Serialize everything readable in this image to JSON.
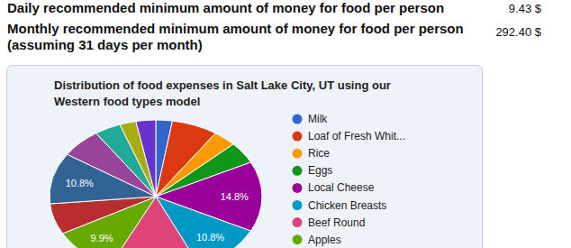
{
  "header": {
    "rows": [
      {
        "label": [
          "Daily recommended minimum amount of money for food per person"
        ],
        "value": "9.43 $"
      },
      {
        "label": [
          "Monthly recommended minimum amount of money for food per person",
          "(assuming 31 days per month)"
        ],
        "value": "292.40 $"
      }
    ]
  },
  "chart_data": {
    "type": "pie",
    "title": "Distribution of food expenses in Salt Lake City, UT using our Western food types model",
    "categories": [
      "Milk",
      "Loaf of Fresh Whit...",
      "Rice",
      "Eggs",
      "Local Cheese",
      "Chicken Breasts",
      "Beef Round",
      "Apples",
      null,
      null,
      null,
      null,
      null,
      null
    ],
    "values": [
      2.5,
      7,
      3.5,
      4.6,
      14.8,
      10.8,
      13.9,
      9.9,
      6.5,
      10.8,
      6.2,
      4,
      2.5,
      3
    ],
    "value_labels": [
      null,
      null,
      null,
      null,
      "14.8%",
      "10.8%",
      null,
      "9.9%",
      null,
      "10.8%",
      null,
      null,
      null,
      null
    ],
    "colors": [
      "#3366cc",
      "#dc3912",
      "#ff9900",
      "#109618",
      "#990099",
      "#0099c6",
      "#dd4477",
      "#66aa00",
      "#b82e2e",
      "#316395",
      "#994499",
      "#22aa99",
      "#aaaa11",
      "#6633cc"
    ],
    "data_labels": true,
    "legend": "right"
  }
}
